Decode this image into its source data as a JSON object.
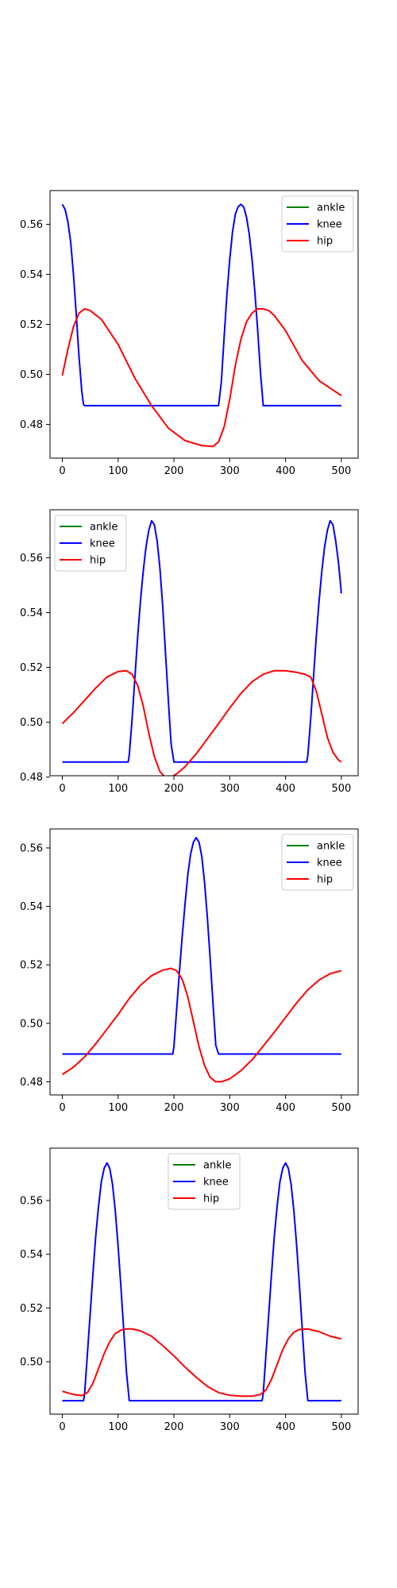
{
  "chart_data": [
    {
      "type": "line",
      "xlim": [
        -22,
        530
      ],
      "ylim": [
        0.4665,
        0.5735
      ],
      "xticks": [
        0,
        100,
        200,
        300,
        400,
        500
      ],
      "yticks": [
        0.48,
        0.5,
        0.52,
        0.54,
        0.56
      ],
      "ytick_decimals": 2,
      "grid": false,
      "legend": "top-right",
      "series": [
        {
          "name": "ankle",
          "color": "#008000",
          "x": [],
          "y": []
        },
        {
          "name": "knee",
          "color": "#0000ff",
          "x": [
            0,
            5,
            10,
            15,
            20,
            25,
            30,
            35,
            38,
            40,
            100,
            200,
            270,
            280,
            285,
            290,
            295,
            300,
            305,
            310,
            315,
            320,
            325,
            330,
            335,
            340,
            345,
            350,
            355,
            360,
            400,
            500
          ],
          "y": [
            0.568,
            0.566,
            0.561,
            0.553,
            0.54,
            0.524,
            0.507,
            0.493,
            0.488,
            0.4875,
            0.4875,
            0.4875,
            0.4875,
            0.4875,
            0.497,
            0.515,
            0.532,
            0.546,
            0.557,
            0.564,
            0.567,
            0.568,
            0.567,
            0.563,
            0.556,
            0.546,
            0.533,
            0.518,
            0.501,
            0.4875,
            0.4875,
            0.4875
          ]
        },
        {
          "name": "hip",
          "color": "#ff0000",
          "x": [
            0,
            10,
            20,
            30,
            40,
            50,
            70,
            100,
            130,
            160,
            190,
            220,
            250,
            270,
            280,
            290,
            300,
            310,
            320,
            330,
            340,
            350,
            360,
            370,
            380,
            400,
            430,
            460,
            480,
            500
          ],
          "y": [
            0.4995,
            0.51,
            0.519,
            0.5245,
            0.5262,
            0.5255,
            0.522,
            0.512,
            0.4985,
            0.4875,
            0.4785,
            0.4735,
            0.4715,
            0.4712,
            0.473,
            0.479,
            0.49,
            0.5035,
            0.514,
            0.521,
            0.5245,
            0.5262,
            0.5262,
            0.5255,
            0.5235,
            0.5175,
            0.5055,
            0.4975,
            0.4945,
            0.4915
          ]
        }
      ]
    },
    {
      "type": "line",
      "xlim": [
        -22,
        530
      ],
      "ylim": [
        0.4805,
        0.5775
      ],
      "xticks": [
        0,
        100,
        200,
        300,
        400,
        500
      ],
      "yticks": [
        0.48,
        0.5,
        0.52,
        0.54,
        0.56
      ],
      "ytick_decimals": 2,
      "grid": false,
      "legend": "top-left",
      "series": [
        {
          "name": "ankle",
          "color": "#008000",
          "x": [],
          "y": []
        },
        {
          "name": "knee",
          "color": "#0000ff",
          "x": [
            0,
            100,
            118,
            120,
            125,
            130,
            135,
            140,
            145,
            150,
            155,
            160,
            165,
            170,
            175,
            180,
            185,
            190,
            195,
            200,
            300,
            438,
            440,
            445,
            450,
            455,
            460,
            465,
            470,
            475,
            480,
            485,
            490,
            495,
            500
          ],
          "y": [
            0.4855,
            0.4855,
            0.4855,
            0.488,
            0.501,
            0.516,
            0.531,
            0.544,
            0.555,
            0.564,
            0.57,
            0.5735,
            0.572,
            0.566,
            0.556,
            0.542,
            0.525,
            0.508,
            0.492,
            0.4855,
            0.4855,
            0.4855,
            0.488,
            0.501,
            0.516,
            0.531,
            0.544,
            0.555,
            0.564,
            0.57,
            0.5735,
            0.572,
            0.566,
            0.558,
            0.547
          ]
        },
        {
          "name": "hip",
          "color": "#ff0000",
          "x": [
            0,
            20,
            40,
            60,
            80,
            100,
            115,
            125,
            135,
            145,
            155,
            165,
            175,
            185,
            195,
            205,
            220,
            240,
            260,
            280,
            300,
            320,
            340,
            360,
            380,
            400,
            420,
            435,
            445,
            455,
            465,
            475,
            485,
            495,
            500
          ],
          "y": [
            0.4995,
            0.5035,
            0.508,
            0.5125,
            0.5165,
            0.5185,
            0.5188,
            0.5175,
            0.5135,
            0.506,
            0.496,
            0.4875,
            0.482,
            0.4798,
            0.48,
            0.4812,
            0.4838,
            0.4885,
            0.494,
            0.4995,
            0.5052,
            0.5105,
            0.5148,
            0.5175,
            0.5188,
            0.5188,
            0.5182,
            0.5175,
            0.5165,
            0.5115,
            0.503,
            0.4945,
            0.489,
            0.4862,
            0.4855
          ]
        }
      ]
    },
    {
      "type": "line",
      "xlim": [
        -22,
        530
      ],
      "ylim": [
        0.4755,
        0.5665
      ],
      "xticks": [
        0,
        100,
        200,
        300,
        400,
        500
      ],
      "yticks": [
        0.48,
        0.5,
        0.52,
        0.54,
        0.56
      ],
      "ytick_decimals": 2,
      "grid": false,
      "legend": "top-right",
      "series": [
        {
          "name": "ankle",
          "color": "#008000",
          "x": [],
          "y": []
        },
        {
          "name": "knee",
          "color": "#0000ff",
          "x": [
            0,
            100,
            198,
            200,
            205,
            210,
            215,
            220,
            225,
            230,
            235,
            240,
            245,
            250,
            255,
            260,
            265,
            270,
            275,
            280,
            400,
            500
          ],
          "y": [
            0.4895,
            0.4895,
            0.4895,
            0.492,
            0.505,
            0.518,
            0.53,
            0.541,
            0.551,
            0.558,
            0.562,
            0.5635,
            0.562,
            0.557,
            0.548,
            0.536,
            0.522,
            0.507,
            0.4925,
            0.4895,
            0.4895,
            0.4895
          ]
        },
        {
          "name": "hip",
          "color": "#ff0000",
          "x": [
            0,
            20,
            40,
            60,
            80,
            100,
            120,
            140,
            160,
            180,
            195,
            205,
            215,
            225,
            235,
            245,
            255,
            265,
            275,
            285,
            300,
            320,
            340,
            360,
            380,
            400,
            420,
            440,
            460,
            480,
            500
          ],
          "y": [
            0.4825,
            0.485,
            0.4885,
            0.493,
            0.498,
            0.503,
            0.5085,
            0.513,
            0.5163,
            0.5182,
            0.5188,
            0.518,
            0.515,
            0.509,
            0.5005,
            0.492,
            0.4855,
            0.4815,
            0.48,
            0.48,
            0.481,
            0.4838,
            0.4875,
            0.4922,
            0.497,
            0.502,
            0.507,
            0.5115,
            0.5148,
            0.517,
            0.518
          ]
        }
      ]
    },
    {
      "type": "line",
      "xlim": [
        -22,
        530
      ],
      "ylim": [
        0.4805,
        0.5795
      ],
      "xticks": [
        0,
        100,
        200,
        300,
        400,
        500
      ],
      "yticks": [
        0.5,
        0.52,
        0.54,
        0.56
      ],
      "ytick_decimals": 2,
      "grid": false,
      "legend": "top-center",
      "series": [
        {
          "name": "ankle",
          "color": "#008000",
          "x": [],
          "y": []
        },
        {
          "name": "knee",
          "color": "#0000ff",
          "x": [
            0,
            38,
            40,
            45,
            50,
            55,
            60,
            65,
            70,
            75,
            80,
            85,
            90,
            95,
            100,
            105,
            110,
            115,
            120,
            200,
            300,
            358,
            360,
            365,
            370,
            375,
            380,
            385,
            390,
            395,
            400,
            405,
            410,
            415,
            420,
            425,
            430,
            435,
            440,
            500
          ],
          "y": [
            0.4855,
            0.4855,
            0.488,
            0.503,
            0.518,
            0.533,
            0.547,
            0.558,
            0.567,
            0.572,
            0.574,
            0.572,
            0.566,
            0.556,
            0.543,
            0.528,
            0.512,
            0.496,
            0.4855,
            0.4855,
            0.4855,
            0.4855,
            0.488,
            0.503,
            0.518,
            0.533,
            0.547,
            0.558,
            0.567,
            0.572,
            0.574,
            0.572,
            0.566,
            0.556,
            0.543,
            0.528,
            0.512,
            0.496,
            0.4855,
            0.4855
          ]
        },
        {
          "name": "hip",
          "color": "#ff0000",
          "x": [
            0,
            20,
            35,
            45,
            55,
            65,
            75,
            85,
            95,
            105,
            115,
            125,
            140,
            160,
            180,
            200,
            220,
            240,
            260,
            280,
            300,
            320,
            340,
            355,
            365,
            375,
            385,
            395,
            405,
            415,
            425,
            440,
            460,
            480,
            500
          ],
          "y": [
            0.489,
            0.4878,
            0.4874,
            0.4885,
            0.492,
            0.4975,
            0.503,
            0.5075,
            0.5105,
            0.5118,
            0.5122,
            0.5122,
            0.5115,
            0.5095,
            0.506,
            0.5022,
            0.498,
            0.4942,
            0.4908,
            0.4885,
            0.4875,
            0.4872,
            0.4872,
            0.4878,
            0.4895,
            0.4935,
            0.499,
            0.5045,
            0.5085,
            0.511,
            0.512,
            0.5122,
            0.5112,
            0.5095,
            0.5085
          ]
        }
      ]
    }
  ]
}
